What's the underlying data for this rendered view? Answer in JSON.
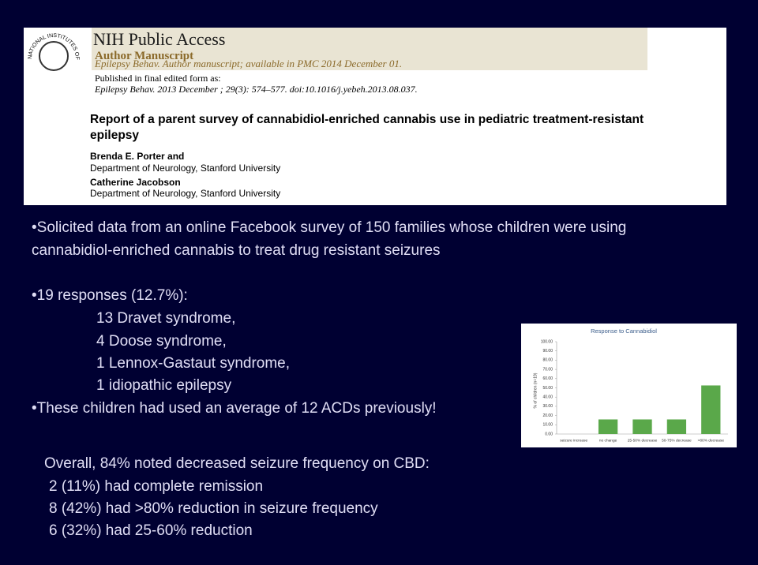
{
  "header": {
    "logo": "NATIONAL INSTITUTES OF HEALTH",
    "title": "NIH Public Access",
    "subtitle": "Author Manuscript",
    "journal": "Epilepsy Behav. Author manuscript; available in PMC 2014 December 01.",
    "published_label": "Published in final edited form as:",
    "citation": "Epilepsy Behav. 2013 December ; 29(3): 574–577. doi:10.1016/j.yebeh.2013.08.037.",
    "paper_title": "Report of a parent survey of cannabidiol-enriched cannabis use in pediatric treatment-resistant epilepsy",
    "authors": [
      "Brenda E. Porter and",
      "Department of Neurology, Stanford University",
      "Catherine Jacobson",
      "Department of Neurology, Stanford University"
    ]
  },
  "bullets": {
    "survey": "Solicited data from an online Facebook survey of 150 families whose children were using cannabidiol-enriched cannabis to treat drug resistant seizures",
    "responses": "19 responses (12.7%):",
    "diagnoses": [
      "13 Dravet syndrome,",
      "4 Doose syndrome,",
      "1 Lennox-Gastaut syndrome,",
      "1 idiopathic epilepsy"
    ],
    "acds": "These children had used an average of 12 ACDs previously!"
  },
  "summary": [
    "Overall, 84% noted decreased seizure frequency on CBD:",
    "2 (11%) had complete remission",
    "8 (42%) had >80% reduction in seizure frequency",
    "6 (32%) had 25-60% reduction"
  ],
  "chart_data": {
    "type": "bar",
    "title": "Response to Cannabidiol",
    "y_label": "% of children (n=19)",
    "categories": [
      "seizure increase",
      "no change",
      "25-50% decrease",
      "50-75% decrease",
      ">80% decrease"
    ],
    "values": [
      0,
      15.8,
      15.8,
      15.8,
      52.6
    ],
    "color": "#5aa84a",
    "ylim": [
      0,
      100
    ],
    "yticks": [
      {
        "value": 0,
        "label": "0.00"
      },
      {
        "value": 10,
        "label": "10.00"
      },
      {
        "value": 20,
        "label": "20.00"
      },
      {
        "value": 30,
        "label": "30.00"
      },
      {
        "value": 40,
        "label": "40.00"
      },
      {
        "value": 50,
        "label": "50.00"
      },
      {
        "value": 60,
        "label": "60.00"
      },
      {
        "value": 70,
        "label": "70.00"
      },
      {
        "value": 80,
        "label": "80.00"
      },
      {
        "value": 90,
        "label": "90.00"
      },
      {
        "value": 100,
        "label": "100.00"
      }
    ]
  }
}
